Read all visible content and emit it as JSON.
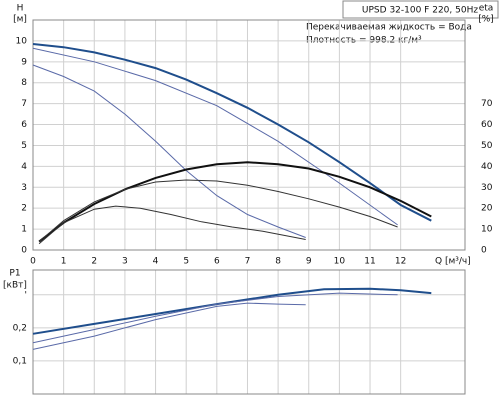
{
  "chart_data": [
    {
      "type": "line",
      "title": "UPSD 32-100 F 220, 50Hz",
      "annotations": [
        "Перекачиваемая жидкость = Вода",
        "Плотность = 998.2 кг/м³"
      ],
      "ylabel": "H",
      "yunit": "[м]",
      "y2label": "eta",
      "y2unit": "[%]",
      "xlabel": "Q [м³/ч]",
      "xlim": [
        0,
        14.1
      ],
      "xticks": [
        0,
        1,
        2,
        3,
        4,
        5,
        6,
        7,
        8,
        9,
        10,
        11,
        12
      ],
      "ylim": [
        0,
        11
      ],
      "yticks": [
        0,
        1,
        2,
        3,
        4,
        5,
        6,
        7,
        8,
        9,
        10
      ],
      "y2lim": [
        0,
        110
      ],
      "y2ticks": [
        0,
        10,
        20,
        30,
        40,
        50,
        60,
        70
      ],
      "grid": true,
      "series": [
        {
          "color": "#1f4e8c",
          "x": [
            0,
            1,
            2,
            3,
            4,
            5,
            6,
            7,
            8,
            9,
            10,
            11,
            12,
            13
          ],
          "values": [
            9.85,
            9.7,
            9.45,
            9.1,
            8.7,
            8.15,
            7.5,
            6.8,
            6.0,
            5.15,
            4.2,
            3.2,
            2.15,
            1.4
          ]
        },
        {
          "color": "#5a6aa8",
          "x": [
            0,
            2,
            4,
            6,
            8,
            10,
            11.9
          ],
          "values": [
            9.65,
            9.0,
            8.1,
            6.9,
            5.2,
            3.2,
            1.2
          ]
        },
        {
          "color": "#5a6aa8",
          "x": [
            0,
            1,
            2,
            3,
            4,
            5,
            6,
            7,
            8,
            8.9
          ],
          "values": [
            8.85,
            8.3,
            7.6,
            6.5,
            5.2,
            3.8,
            2.6,
            1.7,
            1.1,
            0.6
          ]
        },
        {
          "color": "#111111",
          "axis": "y2",
          "x": [
            0.2,
            1,
            2,
            3,
            4,
            5,
            6,
            7,
            8,
            9,
            10,
            11,
            12,
            13
          ],
          "values": [
            4,
            13,
            22,
            29,
            34.5,
            38.5,
            41,
            42,
            41,
            39,
            35,
            30,
            23.5,
            16
          ]
        },
        {
          "color": "#333333",
          "axis": "y2",
          "x": [
            0.2,
            1,
            2,
            3,
            4,
            5,
            6,
            7,
            8,
            9,
            10,
            11,
            11.9
          ],
          "values": [
            4,
            14,
            23,
            29,
            32.5,
            33.5,
            33,
            31,
            28,
            24.5,
            20.5,
            16,
            11
          ]
        },
        {
          "color": "#333333",
          "axis": "y2",
          "x": [
            0.2,
            1,
            2,
            2.7,
            3.5,
            4.5,
            5.5,
            6.5,
            7.5,
            8.9
          ],
          "values": [
            3,
            13,
            19.5,
            21,
            20,
            17,
            13.5,
            11,
            9,
            5
          ]
        }
      ]
    },
    {
      "type": "line",
      "ylabel": "P1",
      "yunit": "[кВт]",
      "xlim": [
        0,
        14.1
      ],
      "xticks": [
        0,
        1,
        2,
        3,
        4,
        5,
        6,
        7,
        8,
        9,
        10,
        11,
        12
      ],
      "ylim": [
        0,
        0.375
      ],
      "yticks": [
        {
          "value": 0.1,
          "label": "0,1"
        },
        {
          "value": 0.2,
          "label": "0,2"
        },
        {
          "value": 0.3,
          "label": "'"
        }
      ],
      "grid": true,
      "series": [
        {
          "color": "#1f4e8c",
          "x": [
            0,
            2,
            4,
            6,
            8,
            9.5,
            11,
            12,
            13
          ],
          "values": [
            0.182,
            0.212,
            0.242,
            0.272,
            0.3,
            0.317,
            0.318,
            0.314,
            0.305
          ]
        },
        {
          "color": "#5a6aa8",
          "x": [
            0,
            2,
            4,
            6,
            8,
            10,
            11.9
          ],
          "values": [
            0.155,
            0.195,
            0.235,
            0.272,
            0.295,
            0.305,
            0.3
          ]
        },
        {
          "color": "#5a6aa8",
          "x": [
            0,
            2,
            4,
            6,
            7,
            8,
            8.9
          ],
          "values": [
            0.135,
            0.175,
            0.225,
            0.265,
            0.275,
            0.272,
            0.27
          ]
        }
      ]
    }
  ]
}
